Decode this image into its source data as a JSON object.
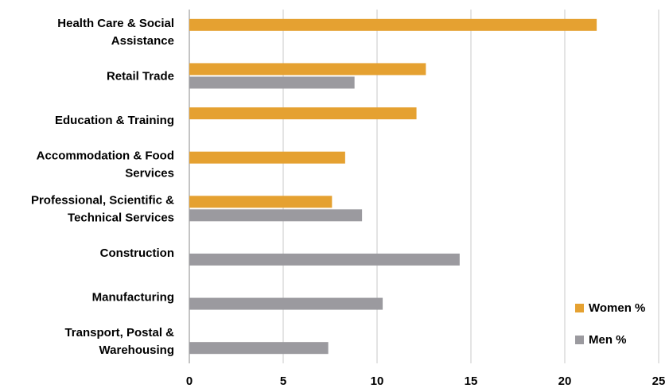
{
  "chart_data": {
    "type": "bar",
    "orientation": "horizontal",
    "categories": [
      [
        "Health Care & Social",
        "Assistance"
      ],
      [
        "Retail Trade"
      ],
      [
        "Education & Training"
      ],
      [
        "Accommodation & Food",
        "Services"
      ],
      [
        "Professional, Scientific &",
        "Technical Services"
      ],
      [
        "Construction"
      ],
      [
        "Manufacturing"
      ],
      [
        "Transport, Postal &",
        "Warehousing"
      ]
    ],
    "series": [
      {
        "name": "Women %",
        "color": "#E5A131",
        "values": [
          21.7,
          12.6,
          12.1,
          8.3,
          7.6,
          null,
          null,
          null
        ]
      },
      {
        "name": "Men %",
        "color": "#9B9A9F",
        "values": [
          null,
          8.8,
          null,
          null,
          9.2,
          14.4,
          10.3,
          7.4
        ]
      }
    ],
    "xlim": [
      0,
      25
    ],
    "xticks": [
      "0",
      "5",
      "10",
      "15",
      "20",
      "25"
    ],
    "xtick_values": [
      0,
      5,
      10,
      15,
      20,
      25
    ],
    "grid": "vertical",
    "legend": "bottom-right",
    "title": "",
    "xlabel": "",
    "ylabel": ""
  }
}
